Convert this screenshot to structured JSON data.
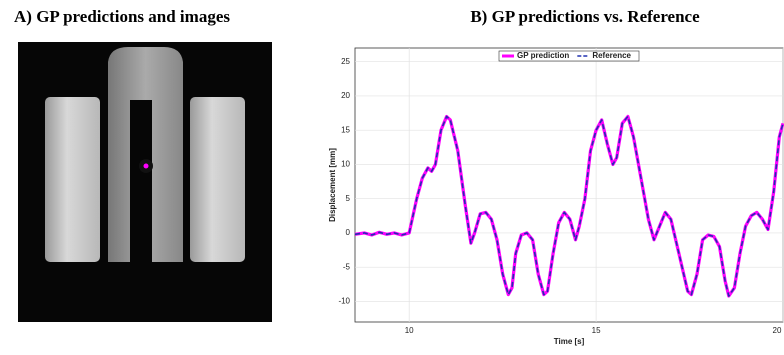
{
  "chart_data": {
    "type": "line",
    "panel_a_title": "A) GP predictions and images",
    "title": "B) GP predictions vs. Reference",
    "xlabel": "Time [s]",
    "ylabel": "Displacement [mm]",
    "x": [
      8.55,
      8.8,
      9.0,
      9.2,
      9.4,
      9.6,
      9.8,
      10.0,
      10.2,
      10.35,
      10.5,
      10.6,
      10.7,
      10.85,
      11.0,
      11.1,
      11.3,
      11.5,
      11.65,
      11.75,
      11.9,
      12.05,
      12.2,
      12.35,
      12.5,
      12.65,
      12.75,
      12.85,
      13.0,
      13.15,
      13.3,
      13.45,
      13.6,
      13.7,
      13.85,
      14.0,
      14.15,
      14.3,
      14.45,
      14.55,
      14.7,
      14.85,
      15.0,
      15.15,
      15.3,
      15.45,
      15.55,
      15.7,
      15.85,
      16.0,
      16.2,
      16.4,
      16.55,
      16.7,
      16.85,
      17.0,
      17.15,
      17.3,
      17.45,
      17.55,
      17.7,
      17.85,
      18.0,
      18.15,
      18.3,
      18.45,
      18.55,
      18.7,
      18.85,
      19.0,
      19.15,
      19.3,
      19.45,
      19.6,
      19.75,
      19.9,
      20.0
    ],
    "series": [
      {
        "name": "GP prediction",
        "color": "#ff00ff",
        "dash": false,
        "values": [
          -0.2,
          0,
          -0.3,
          0.1,
          -0.2,
          0,
          -0.3,
          0,
          5,
          8,
          9.5,
          9,
          10,
          15,
          17,
          16.5,
          12,
          4,
          -1.5,
          0,
          2.8,
          3,
          2,
          -1,
          -6,
          -9,
          -8,
          -3,
          -0.3,
          0,
          -1,
          -6,
          -9,
          -8.5,
          -3,
          1.5,
          3,
          2,
          -1,
          1,
          5,
          12,
          15,
          16.5,
          13,
          10,
          11,
          16,
          17,
          14,
          8,
          2,
          -1,
          1,
          3,
          2,
          -1.5,
          -5,
          -8.5,
          -9,
          -6,
          -1,
          -0.3,
          -0.5,
          -2,
          -7,
          -9.2,
          -8,
          -3,
          1,
          2.5,
          3,
          2,
          0.5,
          6,
          14,
          16
        ]
      },
      {
        "name": "Reference",
        "color": "#2030b0",
        "dash": true,
        "values": [
          -0.2,
          0,
          -0.3,
          0.1,
          -0.2,
          0,
          -0.3,
          0,
          5,
          8,
          9.5,
          9,
          10,
          15,
          17,
          16.5,
          12,
          4,
          -1.5,
          0,
          2.8,
          3,
          2,
          -1,
          -6,
          -9,
          -8,
          -3,
          -0.3,
          0,
          -1,
          -6,
          -9,
          -8.5,
          -3,
          1.5,
          3,
          2,
          -1,
          1,
          5,
          12,
          15,
          16.5,
          13,
          10,
          11,
          16,
          17,
          14,
          8,
          2,
          -1,
          1,
          3,
          2,
          -1.5,
          -5,
          -8.5,
          -9,
          -6,
          -1,
          -0.3,
          -0.5,
          -2,
          -7,
          -9.2,
          -8,
          -3,
          1,
          2.5,
          3,
          2,
          0.5,
          6,
          14,
          16
        ]
      }
    ],
    "xlim": [
      8.55,
      20.0
    ],
    "ylim": [
      -13,
      27
    ],
    "xticks": [
      10,
      15,
      20
    ],
    "yticks": [
      -10,
      -5,
      0,
      5,
      10,
      15,
      20,
      25
    ],
    "grid": true,
    "legend": "top"
  }
}
